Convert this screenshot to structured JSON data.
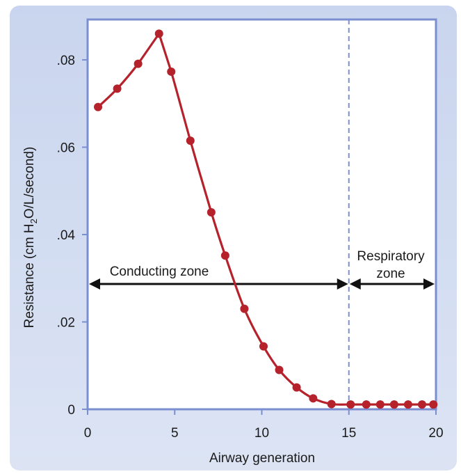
{
  "chart_data": {
    "type": "line",
    "xlabel": "Airway generation",
    "ylabel": {
      "prefix": "Resistance (cm H",
      "subscript": "2",
      "suffix": "O/L/second)"
    },
    "xlim": [
      0,
      20
    ],
    "ylim": [
      0,
      0.088
    ],
    "x_ticks": [
      0,
      5,
      10,
      15,
      20
    ],
    "x_tick_labels": [
      "0",
      "5",
      "10",
      "15",
      "20"
    ],
    "y_ticks": [
      0,
      0.02,
      0.04,
      0.06,
      0.08
    ],
    "y_tick_labels": [
      "0",
      ".02",
      ".04",
      ".06",
      ".08"
    ],
    "grid": false,
    "series": [
      {
        "x": [
          0.6,
          1.7,
          2.9,
          4.1,
          4.8,
          5.9,
          7.1,
          7.9,
          9.0,
          10.1,
          11.0,
          12.0,
          12.95,
          14.0,
          15.1,
          16.0,
          16.8,
          17.6,
          18.4,
          19.2,
          19.85
        ],
        "y": [
          0.0692,
          0.0734,
          0.0791,
          0.086,
          0.0773,
          0.0615,
          0.0451,
          0.0352,
          0.023,
          0.0144,
          0.009,
          0.005,
          0.0025,
          0.0012,
          0.0011,
          0.0011,
          0.0011,
          0.0011,
          0.0011,
          0.0011,
          0.0011
        ]
      }
    ],
    "divider_x": 15,
    "zones": {
      "conducting_label": "Conducting zone",
      "respiratory_label_line1": "Respiratory",
      "respiratory_label_line2": "zone"
    },
    "colors": {
      "panel_background": "#d3ddf0",
      "plot_frame": "#7b8fd0",
      "line": "#b5222b",
      "markers": "#b5222b",
      "divider": "#7b8fd0",
      "arrows": "#111111"
    }
  }
}
